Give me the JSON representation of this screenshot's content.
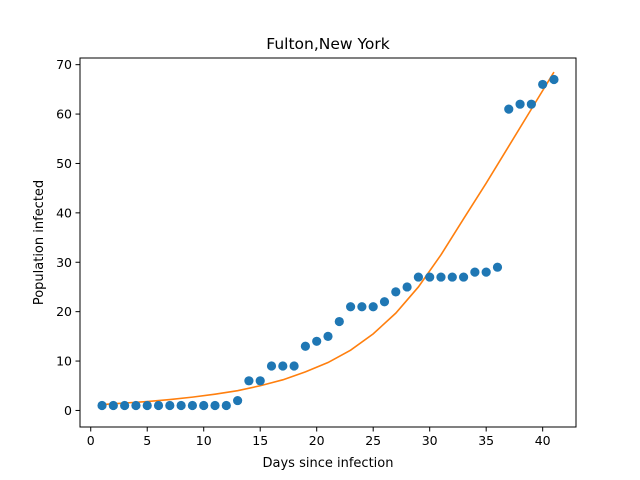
{
  "chart_data": {
    "type": "scatter",
    "title": "Fulton,New York",
    "xlabel": "Days since infection",
    "ylabel": "Population infected",
    "xlim": [
      -0.95,
      42.95
    ],
    "ylim": [
      -3.35,
      71.35
    ],
    "xticks": [
      0,
      5,
      10,
      15,
      20,
      25,
      30,
      35,
      40
    ],
    "yticks": [
      0,
      10,
      20,
      30,
      40,
      50,
      60,
      70
    ],
    "grid": false,
    "series": [
      {
        "kind": "points",
        "color": "#1f77b4",
        "x": [
          1,
          2,
          3,
          4,
          5,
          6,
          7,
          8,
          9,
          10,
          11,
          12,
          13,
          14,
          15,
          16,
          17,
          18,
          19,
          20,
          21,
          22,
          23,
          24,
          25,
          26,
          27,
          28,
          29,
          30,
          31,
          32,
          33,
          34,
          35,
          36,
          37,
          38,
          39,
          40,
          41
        ],
        "y": [
          1,
          1,
          1,
          1,
          1,
          1,
          1,
          1,
          1,
          1,
          1,
          1,
          2,
          6,
          6,
          9,
          9,
          9,
          13,
          14,
          15,
          18,
          21,
          21,
          21,
          22,
          24,
          25,
          27,
          27,
          27,
          27,
          27,
          28,
          28,
          29,
          61,
          62,
          62,
          66,
          67
        ]
      },
      {
        "kind": "fit-line",
        "color": "#ff7f0e",
        "x": [
          1,
          3,
          5,
          7,
          9,
          11,
          13,
          15,
          17,
          19,
          21,
          23,
          25,
          27,
          29,
          31,
          33,
          35,
          37,
          39,
          41
        ],
        "y": [
          1.2,
          1.5,
          1.8,
          2.2,
          2.7,
          3.3,
          4.0,
          5.0,
          6.2,
          7.8,
          9.7,
          12.2,
          15.5,
          19.7,
          25.0,
          31.5,
          38.8,
          46.0,
          53.5,
          61.0,
          68.5
        ]
      }
    ]
  }
}
